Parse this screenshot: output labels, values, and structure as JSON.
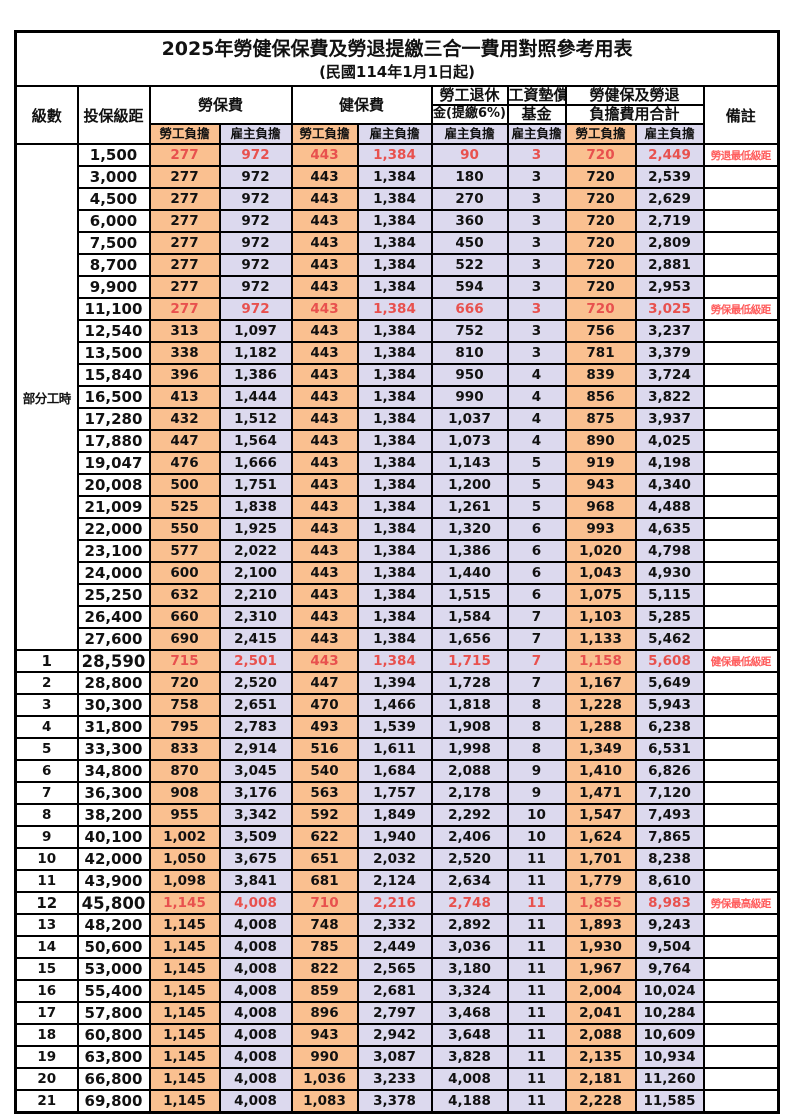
{
  "title": "2025年勞健保保費及勞退提繳三合一費用對照參考用表",
  "subtitle": "(民國114年1月1日起)",
  "colors": {
    "employee_column_bg": "#FAC090",
    "employer_column_bg": "#DCD9EE",
    "highlight_value_text": "#E8514E",
    "remark_text": "#FF5C5C",
    "border": "#000000"
  },
  "header": {
    "level": "級數",
    "bracket": "投保級距",
    "labor_insurance": "勞保費",
    "health_insurance": "健保費",
    "pension_line1": "勞工退休",
    "pension_line2": "金(提繳6%)",
    "wage_fund_line1": "工資墊償",
    "wage_fund_line2": "基金",
    "total_line1": "勞健保及勞退",
    "total_line2": "負擔費用合計",
    "remark": "備註",
    "employee": "勞工負擔",
    "employer": "雇主負擔"
  },
  "part_time_label": "部分工時",
  "part_time_rowspan": 23,
  "rows": [
    {
      "level": "",
      "bracket": "1,500",
      "values": [
        "277",
        "972",
        "443",
        "1,384",
        "90",
        "3",
        "720",
        "2,449"
      ],
      "remark": "勞退最低級距",
      "highlight": true,
      "big": false
    },
    {
      "level": "",
      "bracket": "3,000",
      "values": [
        "277",
        "972",
        "443",
        "1,384",
        "180",
        "3",
        "720",
        "2,539"
      ],
      "remark": "",
      "highlight": false,
      "big": false
    },
    {
      "level": "",
      "bracket": "4,500",
      "values": [
        "277",
        "972",
        "443",
        "1,384",
        "270",
        "3",
        "720",
        "2,629"
      ],
      "remark": "",
      "highlight": false,
      "big": false
    },
    {
      "level": "",
      "bracket": "6,000",
      "values": [
        "277",
        "972",
        "443",
        "1,384",
        "360",
        "3",
        "720",
        "2,719"
      ],
      "remark": "",
      "highlight": false,
      "big": false
    },
    {
      "level": "",
      "bracket": "7,500",
      "values": [
        "277",
        "972",
        "443",
        "1,384",
        "450",
        "3",
        "720",
        "2,809"
      ],
      "remark": "",
      "highlight": false,
      "big": false
    },
    {
      "level": "",
      "bracket": "8,700",
      "values": [
        "277",
        "972",
        "443",
        "1,384",
        "522",
        "3",
        "720",
        "2,881"
      ],
      "remark": "",
      "highlight": false,
      "big": false
    },
    {
      "level": "",
      "bracket": "9,900",
      "values": [
        "277",
        "972",
        "443",
        "1,384",
        "594",
        "3",
        "720",
        "2,953"
      ],
      "remark": "",
      "highlight": false,
      "big": false
    },
    {
      "level": "",
      "bracket": "11,100",
      "values": [
        "277",
        "972",
        "443",
        "1,384",
        "666",
        "3",
        "720",
        "3,025"
      ],
      "remark": "勞保最低級距",
      "highlight": true,
      "big": false
    },
    {
      "level": "",
      "bracket": "12,540",
      "values": [
        "313",
        "1,097",
        "443",
        "1,384",
        "752",
        "3",
        "756",
        "3,237"
      ],
      "remark": "",
      "highlight": false,
      "big": false
    },
    {
      "level": "",
      "bracket": "13,500",
      "values": [
        "338",
        "1,182",
        "443",
        "1,384",
        "810",
        "3",
        "781",
        "3,379"
      ],
      "remark": "",
      "highlight": false,
      "big": false
    },
    {
      "level": "",
      "bracket": "15,840",
      "values": [
        "396",
        "1,386",
        "443",
        "1,384",
        "950",
        "4",
        "839",
        "3,724"
      ],
      "remark": "",
      "highlight": false,
      "big": false
    },
    {
      "level": "",
      "bracket": "16,500",
      "values": [
        "413",
        "1,444",
        "443",
        "1,384",
        "990",
        "4",
        "856",
        "3,822"
      ],
      "remark": "",
      "highlight": false,
      "big": false
    },
    {
      "level": "",
      "bracket": "17,280",
      "values": [
        "432",
        "1,512",
        "443",
        "1,384",
        "1,037",
        "4",
        "875",
        "3,937"
      ],
      "remark": "",
      "highlight": false,
      "big": false
    },
    {
      "level": "",
      "bracket": "17,880",
      "values": [
        "447",
        "1,564",
        "443",
        "1,384",
        "1,073",
        "4",
        "890",
        "4,025"
      ],
      "remark": "",
      "highlight": false,
      "big": false
    },
    {
      "level": "",
      "bracket": "19,047",
      "values": [
        "476",
        "1,666",
        "443",
        "1,384",
        "1,143",
        "5",
        "919",
        "4,198"
      ],
      "remark": "",
      "highlight": false,
      "big": false
    },
    {
      "level": "",
      "bracket": "20,008",
      "values": [
        "500",
        "1,751",
        "443",
        "1,384",
        "1,200",
        "5",
        "943",
        "4,340"
      ],
      "remark": "",
      "highlight": false,
      "big": false
    },
    {
      "level": "",
      "bracket": "21,009",
      "values": [
        "525",
        "1,838",
        "443",
        "1,384",
        "1,261",
        "5",
        "968",
        "4,488"
      ],
      "remark": "",
      "highlight": false,
      "big": false
    },
    {
      "level": "",
      "bracket": "22,000",
      "values": [
        "550",
        "1,925",
        "443",
        "1,384",
        "1,320",
        "6",
        "993",
        "4,635"
      ],
      "remark": "",
      "highlight": false,
      "big": false
    },
    {
      "level": "",
      "bracket": "23,100",
      "values": [
        "577",
        "2,022",
        "443",
        "1,384",
        "1,386",
        "6",
        "1,020",
        "4,798"
      ],
      "remark": "",
      "highlight": false,
      "big": false
    },
    {
      "level": "",
      "bracket": "24,000",
      "values": [
        "600",
        "2,100",
        "443",
        "1,384",
        "1,440",
        "6",
        "1,043",
        "4,930"
      ],
      "remark": "",
      "highlight": false,
      "big": false
    },
    {
      "level": "",
      "bracket": "25,250",
      "values": [
        "632",
        "2,210",
        "443",
        "1,384",
        "1,515",
        "6",
        "1,075",
        "5,115"
      ],
      "remark": "",
      "highlight": false,
      "big": false
    },
    {
      "level": "",
      "bracket": "26,400",
      "values": [
        "660",
        "2,310",
        "443",
        "1,384",
        "1,584",
        "7",
        "1,103",
        "5,285"
      ],
      "remark": "",
      "highlight": false,
      "big": false
    },
    {
      "level": "",
      "bracket": "27,600",
      "values": [
        "690",
        "2,415",
        "443",
        "1,384",
        "1,656",
        "7",
        "1,133",
        "5,462"
      ],
      "remark": "",
      "highlight": false,
      "big": false
    },
    {
      "level": "1",
      "bracket": "28,590",
      "values": [
        "715",
        "2,501",
        "443",
        "1,384",
        "1,715",
        "7",
        "1,158",
        "5,608"
      ],
      "remark": "健保最低級距",
      "highlight": true,
      "big": true
    },
    {
      "level": "2",
      "bracket": "28,800",
      "values": [
        "720",
        "2,520",
        "447",
        "1,394",
        "1,728",
        "7",
        "1,167",
        "5,649"
      ],
      "remark": "",
      "highlight": false,
      "big": false
    },
    {
      "level": "3",
      "bracket": "30,300",
      "values": [
        "758",
        "2,651",
        "470",
        "1,466",
        "1,818",
        "8",
        "1,228",
        "5,943"
      ],
      "remark": "",
      "highlight": false,
      "big": false
    },
    {
      "level": "4",
      "bracket": "31,800",
      "values": [
        "795",
        "2,783",
        "493",
        "1,539",
        "1,908",
        "8",
        "1,288",
        "6,238"
      ],
      "remark": "",
      "highlight": false,
      "big": false
    },
    {
      "level": "5",
      "bracket": "33,300",
      "values": [
        "833",
        "2,914",
        "516",
        "1,611",
        "1,998",
        "8",
        "1,349",
        "6,531"
      ],
      "remark": "",
      "highlight": false,
      "big": false
    },
    {
      "level": "6",
      "bracket": "34,800",
      "values": [
        "870",
        "3,045",
        "540",
        "1,684",
        "2,088",
        "9",
        "1,410",
        "6,826"
      ],
      "remark": "",
      "highlight": false,
      "big": false
    },
    {
      "level": "7",
      "bracket": "36,300",
      "values": [
        "908",
        "3,176",
        "563",
        "1,757",
        "2,178",
        "9",
        "1,471",
        "7,120"
      ],
      "remark": "",
      "highlight": false,
      "big": false
    },
    {
      "level": "8",
      "bracket": "38,200",
      "values": [
        "955",
        "3,342",
        "592",
        "1,849",
        "2,292",
        "10",
        "1,547",
        "7,493"
      ],
      "remark": "",
      "highlight": false,
      "big": false
    },
    {
      "level": "9",
      "bracket": "40,100",
      "values": [
        "1,002",
        "3,509",
        "622",
        "1,940",
        "2,406",
        "10",
        "1,624",
        "7,865"
      ],
      "remark": "",
      "highlight": false,
      "big": false
    },
    {
      "level": "10",
      "bracket": "42,000",
      "values": [
        "1,050",
        "3,675",
        "651",
        "2,032",
        "2,520",
        "11",
        "1,701",
        "8,238"
      ],
      "remark": "",
      "highlight": false,
      "big": false
    },
    {
      "level": "11",
      "bracket": "43,900",
      "values": [
        "1,098",
        "3,841",
        "681",
        "2,124",
        "2,634",
        "11",
        "1,779",
        "8,610"
      ],
      "remark": "",
      "highlight": false,
      "big": false
    },
    {
      "level": "12",
      "bracket": "45,800",
      "values": [
        "1,145",
        "4,008",
        "710",
        "2,216",
        "2,748",
        "11",
        "1,855",
        "8,983"
      ],
      "remark": "勞保最高級距",
      "highlight": true,
      "big": true
    },
    {
      "level": "13",
      "bracket": "48,200",
      "values": [
        "1,145",
        "4,008",
        "748",
        "2,332",
        "2,892",
        "11",
        "1,893",
        "9,243"
      ],
      "remark": "",
      "highlight": false,
      "big": false
    },
    {
      "level": "14",
      "bracket": "50,600",
      "values": [
        "1,145",
        "4,008",
        "785",
        "2,449",
        "3,036",
        "11",
        "1,930",
        "9,504"
      ],
      "remark": "",
      "highlight": false,
      "big": false
    },
    {
      "level": "15",
      "bracket": "53,000",
      "values": [
        "1,145",
        "4,008",
        "822",
        "2,565",
        "3,180",
        "11",
        "1,967",
        "9,764"
      ],
      "remark": "",
      "highlight": false,
      "big": false
    },
    {
      "level": "16",
      "bracket": "55,400",
      "values": [
        "1,145",
        "4,008",
        "859",
        "2,681",
        "3,324",
        "11",
        "2,004",
        "10,024"
      ],
      "remark": "",
      "highlight": false,
      "big": false
    },
    {
      "level": "17",
      "bracket": "57,800",
      "values": [
        "1,145",
        "4,008",
        "896",
        "2,797",
        "3,468",
        "11",
        "2,041",
        "10,284"
      ],
      "remark": "",
      "highlight": false,
      "big": false
    },
    {
      "level": "18",
      "bracket": "60,800",
      "values": [
        "1,145",
        "4,008",
        "943",
        "2,942",
        "3,648",
        "11",
        "2,088",
        "10,609"
      ],
      "remark": "",
      "highlight": false,
      "big": false
    },
    {
      "level": "19",
      "bracket": "63,800",
      "values": [
        "1,145",
        "4,008",
        "990",
        "3,087",
        "3,828",
        "11",
        "2,135",
        "10,934"
      ],
      "remark": "",
      "highlight": false,
      "big": false
    },
    {
      "level": "20",
      "bracket": "66,800",
      "values": [
        "1,145",
        "4,008",
        "1,036",
        "3,233",
        "4,008",
        "11",
        "2,181",
        "11,260"
      ],
      "remark": "",
      "highlight": false,
      "big": false
    },
    {
      "level": "21",
      "bracket": "69,800",
      "values": [
        "1,145",
        "4,008",
        "1,083",
        "3,378",
        "4,188",
        "11",
        "2,228",
        "11,585"
      ],
      "remark": "",
      "highlight": false,
      "big": false
    }
  ]
}
